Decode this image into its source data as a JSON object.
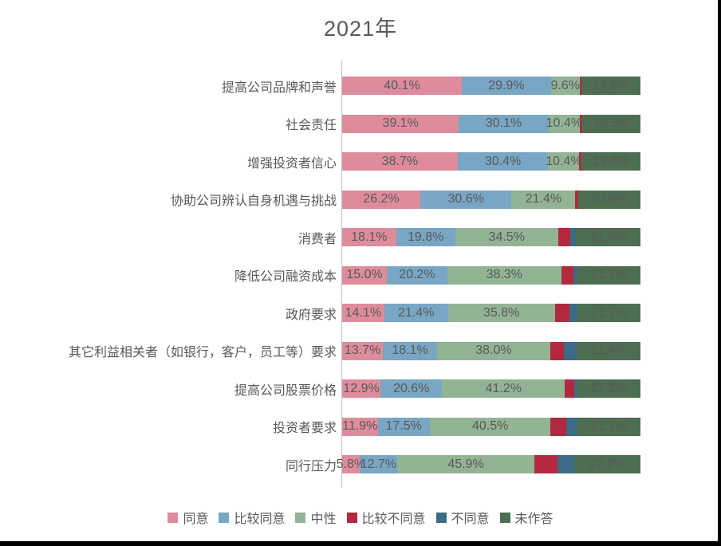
{
  "title": "2021年",
  "colors": {
    "agree": "#de8c9b",
    "somewhat_agree": "#78a6c4",
    "neutral": "#93b395",
    "somewhat_disagree": "#b2293f",
    "disagree": "#3d6a84",
    "no_answer": "#4d6e51",
    "text": "#595959",
    "axis_line": "#c3c3c3"
  },
  "chart_data": {
    "type": "bar",
    "orientation": "horizontal",
    "stacked": true,
    "title": "2021年",
    "unit": "%",
    "xlim": [
      0,
      100
    ],
    "grid": false,
    "legend_position": "bottom",
    "categories": [
      "提高公司品牌和声誉",
      "社会责任",
      "增强投资者信心",
      "协助公司辨认自身机遇与挑战",
      "消费者",
      "降低公司融资成本",
      "政府要求",
      "其它利益相关者（如银行，客户，员工等）要求",
      "提高公司股票价格",
      "投资者要求",
      "同行压力"
    ],
    "series": [
      {
        "key": "agree",
        "name": "同意",
        "color": "#de8c9b",
        "labeled": true,
        "values": [
          40.1,
          39.1,
          38.7,
          26.2,
          18.1,
          15.0,
          14.1,
          13.7,
          12.9,
          11.9,
          5.8
        ]
      },
      {
        "key": "somewhat_agree",
        "name": "比较同意",
        "color": "#78a6c4",
        "labeled": true,
        "values": [
          29.9,
          30.1,
          30.4,
          30.6,
          19.8,
          20.2,
          21.4,
          18.1,
          20.6,
          17.5,
          12.7
        ]
      },
      {
        "key": "neutral",
        "name": "中性",
        "color": "#93b395",
        "labeled": true,
        "values": [
          9.6,
          10.4,
          10.4,
          21.4,
          34.5,
          38.3,
          35.8,
          38.0,
          41.2,
          40.5,
          45.9
        ]
      },
      {
        "key": "somewhat_disagree",
        "name": "比较不同意",
        "color": "#b2293f",
        "labeled": false,
        "values": [
          0.6,
          0.9,
          0.7,
          1.0,
          4.2,
          4.0,
          5.0,
          4.6,
          3.2,
          5.2,
          7.9
        ]
      },
      {
        "key": "disagree",
        "name": "不同意",
        "color": "#3d6a84",
        "labeled": false,
        "values": [
          0.0,
          0.0,
          0.0,
          0.0,
          1.8,
          1.3,
          2.5,
          4.2,
          0.9,
          3.7,
          5.5
        ]
      },
      {
        "key": "no_answer",
        "name": "未作答",
        "color": "#4d6e51",
        "labeled": true,
        "values": [
          19.8,
          19.5,
          19.8,
          20.8,
          21.6,
          21.2,
          21.2,
          21.4,
          21.2,
          21.2,
          22.2
        ]
      }
    ]
  }
}
